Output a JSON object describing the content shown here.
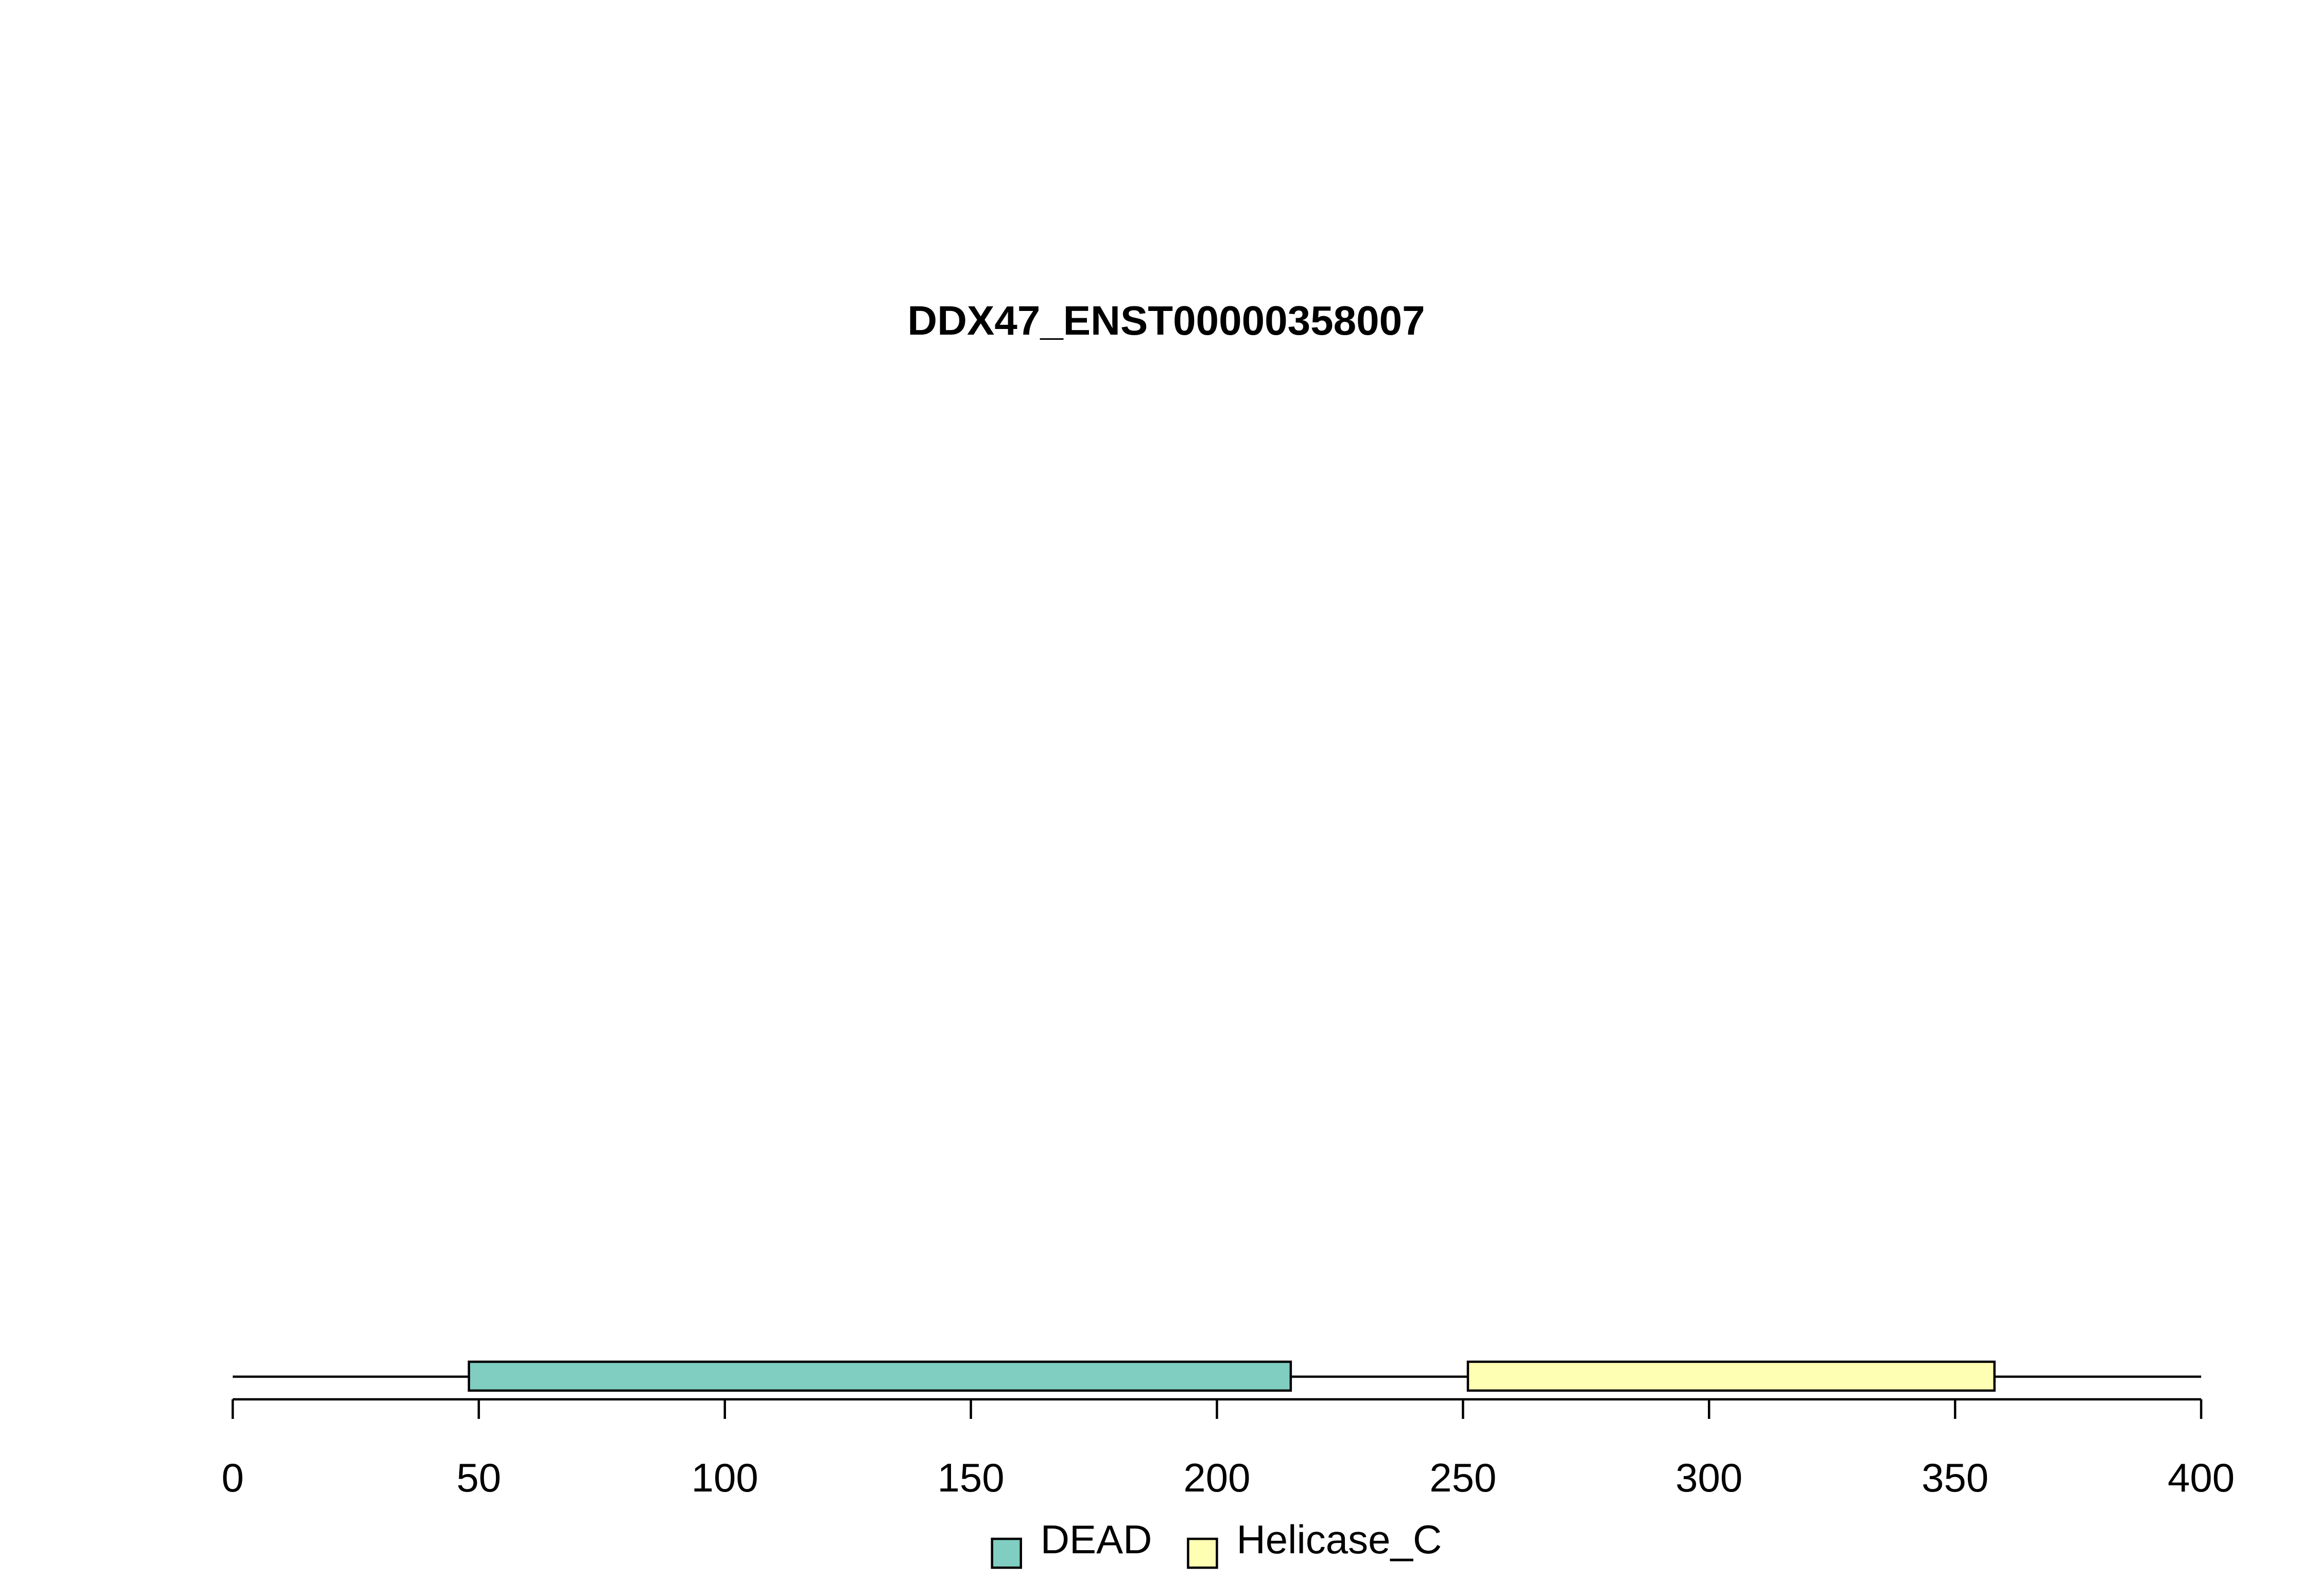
{
  "chart_data": {
    "type": "bar",
    "title": "DDX47_ENST00000358007",
    "xlim": [
      0,
      400
    ],
    "protein_length": 400,
    "xticks": [
      0,
      50,
      100,
      150,
      200,
      250,
      300,
      350,
      400
    ],
    "xtick_labels": [
      "0",
      "50",
      "100",
      "150",
      "200",
      "250",
      "300",
      "350",
      "400"
    ],
    "domains": [
      {
        "name": "DEAD",
        "start": 48,
        "end": 215,
        "color": "#80CDC1"
      },
      {
        "name": "Helicase_C",
        "start": 251,
        "end": 358,
        "color": "#FFFFB3"
      }
    ],
    "legend": {
      "position": "bottom-center",
      "entries": [
        {
          "label": "DEAD",
          "color": "#80CDC1"
        },
        {
          "label": "Helicase_C",
          "color": "#FFFFB3"
        }
      ]
    },
    "grid": false
  }
}
